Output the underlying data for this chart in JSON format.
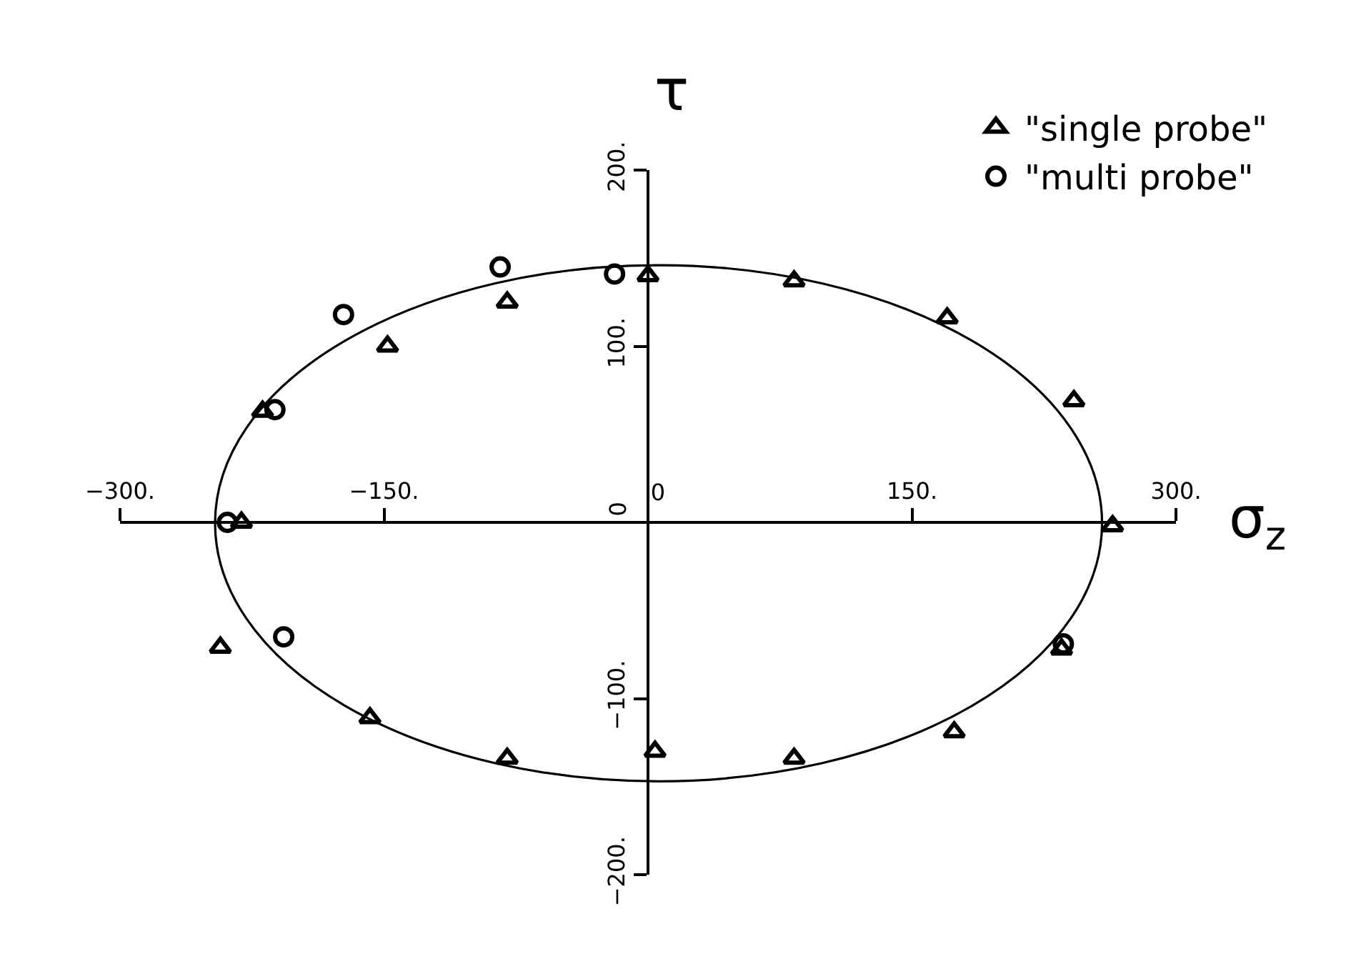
{
  "chart_data": {
    "type": "scatter",
    "xlabel": "σ$_{z}$",
    "ylabel": "τ",
    "xlim": [
      -300,
      300
    ],
    "ylim": [
      -200,
      200
    ],
    "xticks": [
      {
        "value": -300,
        "label": "−300."
      },
      {
        "value": -150,
        "label": "−150."
      },
      {
        "value": 0,
        "label": "0"
      },
      {
        "value": 150,
        "label": "150."
      },
      {
        "value": 300,
        "label": "300."
      }
    ],
    "yticks": [
      {
        "value": -200,
        "label": "−200."
      },
      {
        "value": -100,
        "label": "−100."
      },
      {
        "value": 0,
        "label": "0"
      },
      {
        "value": 100,
        "label": "100."
      },
      {
        "value": 200,
        "label": "200."
      }
    ],
    "grid": false,
    "legend": "top right",
    "series": [
      {
        "name": "\"single probe\"",
        "color": "#000000",
        "marker": "triangle",
        "x": [
          264,
          242,
          170,
          83,
          0,
          -80,
          -148,
          -219,
          -231,
          -243,
          -158,
          -80,
          4,
          83,
          174,
          235
        ],
        "values": [
          -2,
          69,
          116,
          137,
          140,
          125,
          100,
          63,
          0,
          -71,
          -111,
          -134,
          -130,
          -134,
          -119,
          -72
        ]
      },
      {
        "name": "\"multi probe\"",
        "color": "#000000",
        "marker": "circle",
        "x": [
          -19,
          -84,
          -173,
          -212,
          -239,
          -207,
          236
        ],
        "values": [
          141,
          145,
          118,
          64,
          0,
          -65,
          -69
        ]
      }
    ]
  }
}
